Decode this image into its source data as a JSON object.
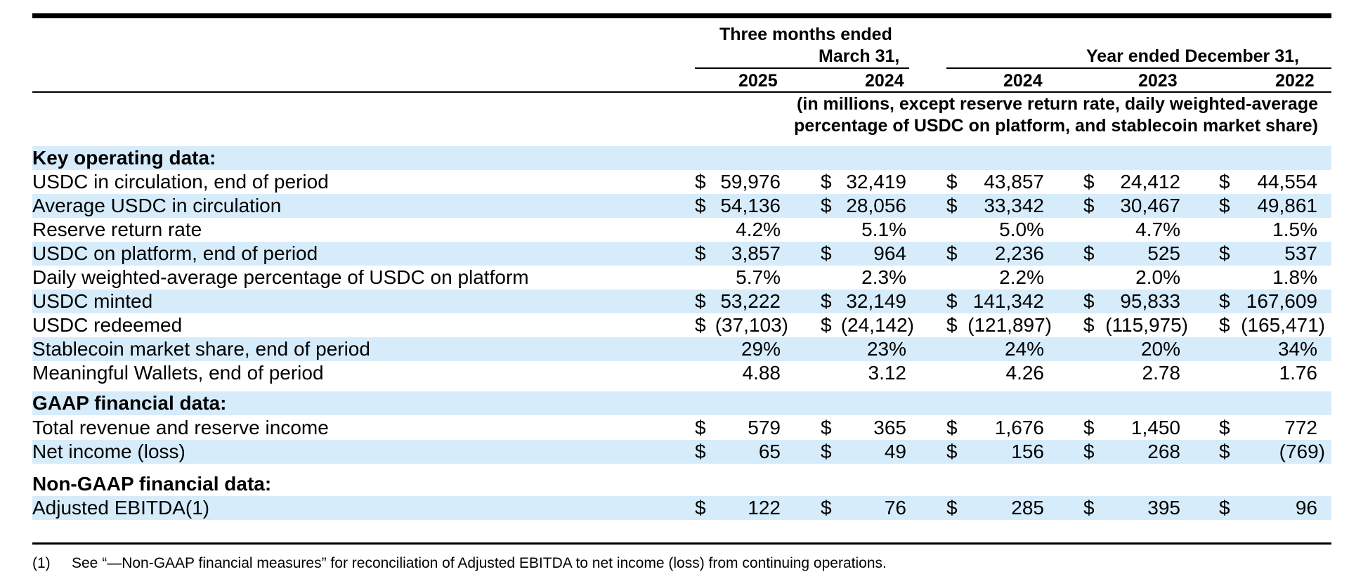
{
  "header": {
    "quarter_group_line1": "Three months ended",
    "quarter_group_line2": "March 31,",
    "year_group": "Year ended December 31,",
    "columns": [
      "2025",
      "2024",
      "2024",
      "2023",
      "2022"
    ],
    "units_line1": "(in millions, except reserve return rate, daily weighted-average",
    "units_line2": "percentage of USDC on platform, and stablecoin market share)"
  },
  "sections": [
    {
      "title": "Key operating data:",
      "rows": [
        {
          "label": "USDC in circulation, end of period",
          "dollar": true,
          "values": [
            "59,976",
            "32,419",
            "43,857",
            "24,412",
            "44,554"
          ]
        },
        {
          "label": "Average USDC in circulation",
          "dollar": true,
          "values": [
            "54,136",
            "28,056",
            "33,342",
            "30,467",
            "49,861"
          ]
        },
        {
          "label": "Reserve return rate",
          "dollar": false,
          "values": [
            "4.2%",
            "5.1%",
            "5.0%",
            "4.7%",
            "1.5%"
          ]
        },
        {
          "label": "USDC on platform, end of period",
          "dollar": true,
          "values": [
            "3,857",
            "964",
            "2,236",
            "525",
            "537"
          ]
        },
        {
          "label": "Daily weighted-average percentage of USDC on platform",
          "dollar": false,
          "values": [
            "5.7%",
            "2.3%",
            "2.2%",
            "2.0%",
            "1.8%"
          ]
        },
        {
          "label": "USDC minted",
          "dollar": true,
          "values": [
            "53,222",
            "32,149",
            "141,342",
            "95,833",
            "167,609"
          ]
        },
        {
          "label": "USDC redeemed",
          "dollar": true,
          "values": [
            "(37,103)",
            "(24,142)",
            "(121,897)",
            "(115,975)",
            "(165,471)"
          ]
        },
        {
          "label": "Stablecoin market share, end of period",
          "dollar": false,
          "values": [
            "29%",
            "23%",
            "24%",
            "20%",
            "34%"
          ]
        },
        {
          "label": "Meaningful Wallets, end of period",
          "dollar": false,
          "values": [
            "4.88",
            "3.12",
            "4.26",
            "2.78",
            "1.76"
          ]
        }
      ]
    },
    {
      "title": "GAAP financial data:",
      "rows": [
        {
          "label": "Total revenue and reserve income",
          "dollar": true,
          "values": [
            "579",
            "365",
            "1,676",
            "1,450",
            "772"
          ]
        },
        {
          "label": "Net income (loss)",
          "dollar": true,
          "values": [
            "65",
            "49",
            "156",
            "268",
            "(769)"
          ]
        }
      ]
    },
    {
      "title": "Non-GAAP financial data:",
      "rows": [
        {
          "label": "Adjusted EBITDA(1)",
          "dollar": true,
          "values": [
            "122",
            "76",
            "285",
            "395",
            "96"
          ]
        }
      ]
    }
  ],
  "currency_symbol": "$",
  "footnote": {
    "marker": "(1)",
    "text": "See “—Non-GAAP financial measures” for reconciliation of Adjusted EBITDA to net income (loss) from continuing operations."
  },
  "colors": {
    "band": "#d7ecfb",
    "rule": "#000000"
  }
}
